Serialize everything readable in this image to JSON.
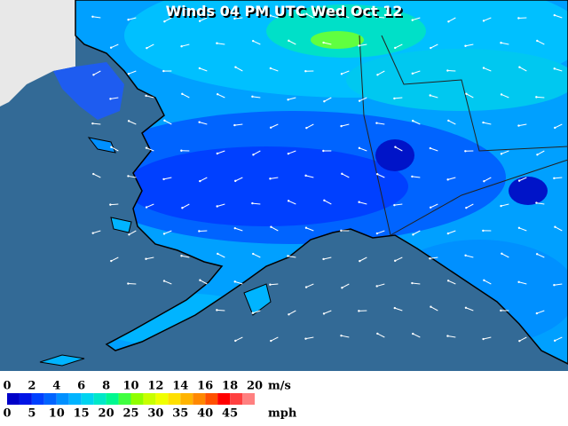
{
  "title": "Winds 04 PM UTC Wed Oct 12",
  "legend": {
    "ms_labels": [
      "0",
      "2",
      "4",
      "6",
      "8",
      "10",
      "12",
      "14",
      "16",
      "18",
      "20"
    ],
    "ms_unit": "m/s",
    "mph_labels": [
      "0",
      "5",
      "10",
      "15",
      "20",
      "25",
      "30",
      "35",
      "40",
      "45"
    ],
    "mph_unit": "mph",
    "colors": [
      "#0000c8",
      "#0014e6",
      "#0040ff",
      "#0064ff",
      "#0090ff",
      "#00b4ff",
      "#00d4f0",
      "#00e8c8",
      "#00f890",
      "#40ff40",
      "#90ff00",
      "#c8ff00",
      "#f0ff00",
      "#ffe000",
      "#ffb400",
      "#ff8800",
      "#ff5000",
      "#ff0000",
      "#ff4040",
      "#ff8080"
    ]
  }
}
